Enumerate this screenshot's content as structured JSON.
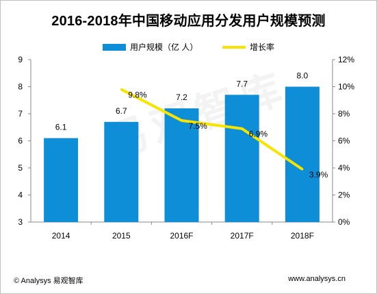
{
  "title": "2016-2018年中国移动应用分发用户规模预测",
  "legend": {
    "bar_label": "用户规模（亿 人）",
    "line_label": "增长率"
  },
  "footer": {
    "left": "© Analysys 易观智库",
    "right": "www.analysys.cn"
  },
  "watermark": "易观智库",
  "colors": {
    "bar": "#0f8ed8",
    "line": "#f7e400"
  },
  "chart_data": {
    "type": "bar",
    "categories": [
      "2014",
      "2015",
      "2016F",
      "2017F",
      "2018F"
    ],
    "series": [
      {
        "name": "用户规模（亿 人）",
        "type": "bar",
        "axis": "left",
        "values": [
          6.1,
          6.7,
          7.2,
          7.7,
          8.0
        ],
        "labels": [
          "6.1",
          "6.7",
          "7.2",
          "7.7",
          "8.0"
        ]
      },
      {
        "name": "增长率",
        "type": "line",
        "axis": "right",
        "values": [
          null,
          9.8,
          7.5,
          6.9,
          3.9
        ],
        "labels": [
          "",
          "9.8%",
          "7.5%",
          "6.9%",
          "3.9%"
        ]
      }
    ],
    "left_axis": {
      "ylim": [
        3,
        9
      ],
      "ticks": [
        "3",
        "4",
        "5",
        "6",
        "7",
        "8",
        "9"
      ]
    },
    "right_axis": {
      "ylim": [
        0,
        12
      ],
      "ticks": [
        "0%",
        "2%",
        "4%",
        "6%",
        "8%",
        "10%",
        "12%"
      ]
    },
    "grid": false,
    "legend_position": "top"
  }
}
